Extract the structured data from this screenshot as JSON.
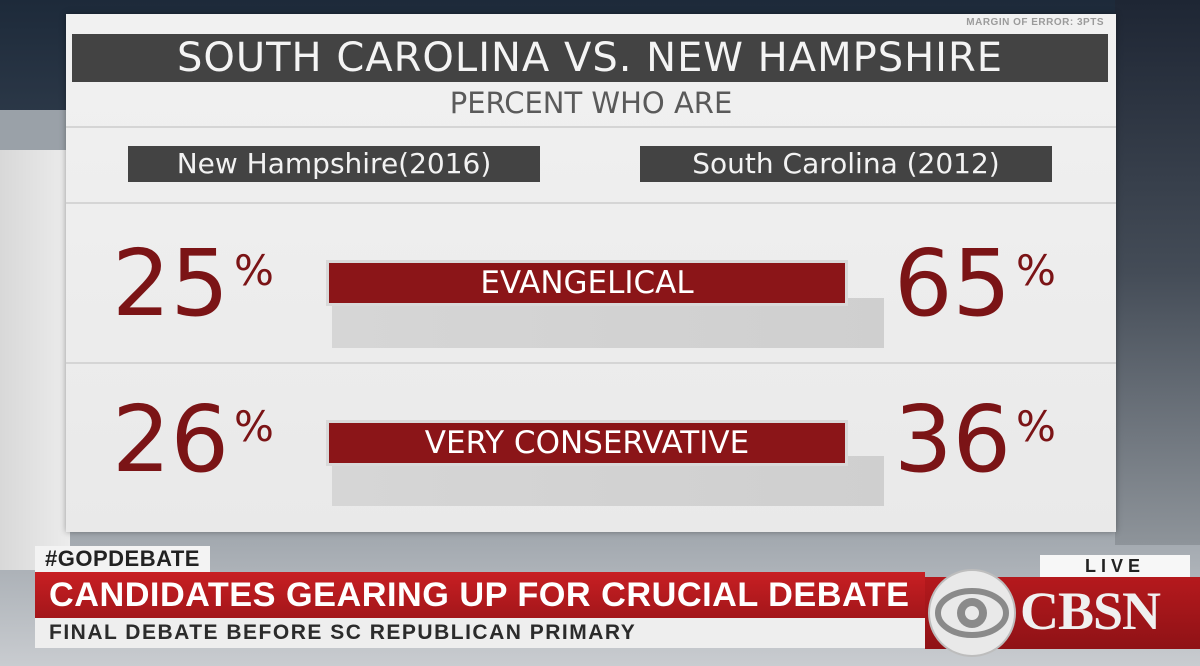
{
  "graphic": {
    "margin_note": "MARGIN OF ERROR: 3PTS",
    "title": "SOUTH CAROLINA VS. NEW HAMPSHIRE",
    "subtitle": "PERCENT WHO ARE",
    "left_state": "New Hampshire(2016)",
    "right_state": "South Carolina (2012)",
    "percent_symbol": "%",
    "rows": [
      {
        "category": "EVANGELICAL",
        "left_value": "25",
        "right_value": "65"
      },
      {
        "category": "VERY CONSERVATIVE",
        "left_value": "26",
        "right_value": "36"
      }
    ]
  },
  "lower_third": {
    "hashtag": "#GOPDEBATE",
    "headline": "CANDIDATES GEARING UP FOR CRUCIAL DEBATE",
    "subline": "FINAL DEBATE BEFORE SC REPUBLICAN PRIMARY",
    "live_label": "LIVE",
    "network": "CBSN",
    "logo_icon": "cbs-eye-icon"
  },
  "colors": {
    "accent_red": "#8b1518",
    "number_red": "#7b1416",
    "label_gray": "#434343"
  }
}
